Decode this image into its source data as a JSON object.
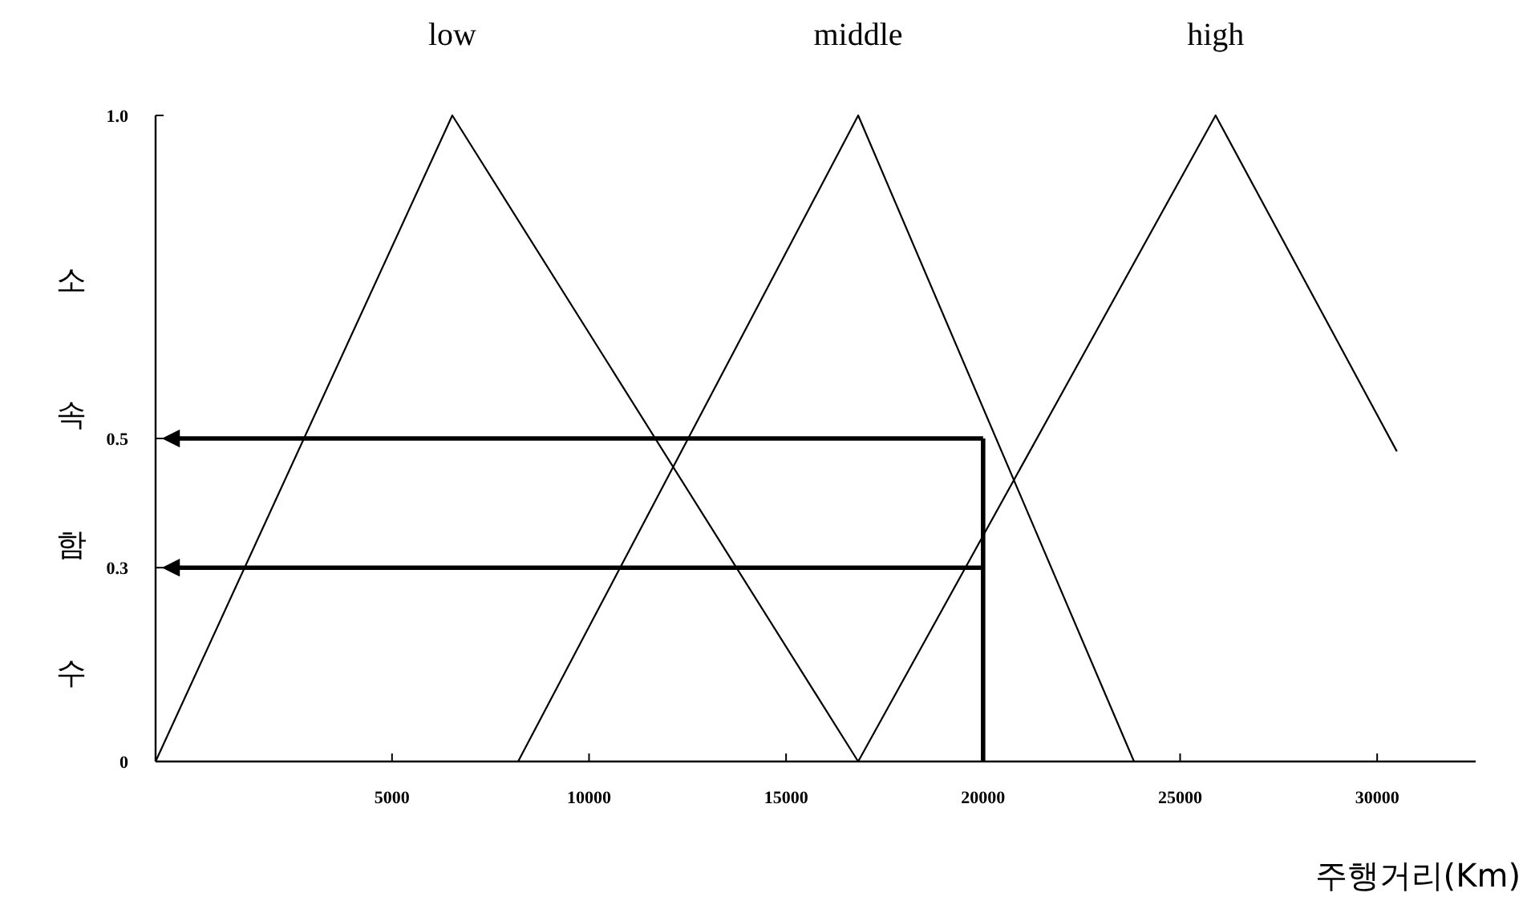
{
  "chart_data": {
    "type": "line",
    "ylabel": "소속함수",
    "xlabel": "주행거리(Km)",
    "xlim": [
      -1000,
      32500
    ],
    "ylim": [
      0,
      1
    ],
    "xticks": [
      5000,
      10000,
      15000,
      20000,
      25000,
      30000
    ],
    "yticks": [
      0,
      0.3,
      0.5,
      {
        "value": 1,
        "label": "1.0"
      }
    ],
    "grid": false,
    "series": [
      {
        "name": "low",
        "color": "#000000",
        "x": [
          -1000,
          6530,
          16830
        ],
        "values": [
          0,
          1,
          0
        ]
      },
      {
        "name": "middle",
        "color": "#000000",
        "x": [
          8200,
          16830,
          23830
        ],
        "values": [
          0,
          1,
          0
        ]
      },
      {
        "name": "high",
        "color": "#000000",
        "x": [
          16830,
          25900,
          30500
        ],
        "values": [
          0,
          1,
          0.48
        ]
      }
    ],
    "ref_lines": [
      {
        "axis": "x",
        "value": 20000,
        "color": "#000000"
      },
      {
        "axis": "y",
        "value": 0.5,
        "color": "#000000"
      },
      {
        "axis": "y",
        "value": 0.3,
        "color": "#000000"
      }
    ]
  }
}
